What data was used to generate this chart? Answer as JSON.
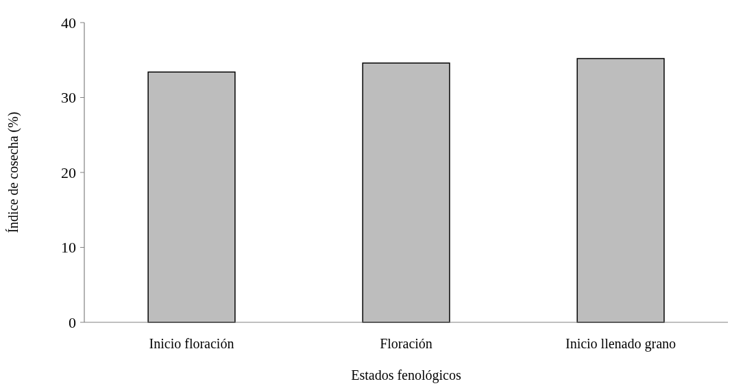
{
  "chart_data": {
    "type": "bar",
    "xlabel": "Estados fenológicos",
    "ylabel": "Índice de cosecha (%)",
    "categories": [
      "Inicio floración",
      "Floración",
      "Inicio llenado grano"
    ],
    "values": [
      33.4,
      34.6,
      35.2
    ],
    "color": "#bdbdbd",
    "ylim": [
      0,
      40
    ],
    "yticks": [
      0,
      10,
      20,
      30,
      40
    ],
    "grid": false
  }
}
